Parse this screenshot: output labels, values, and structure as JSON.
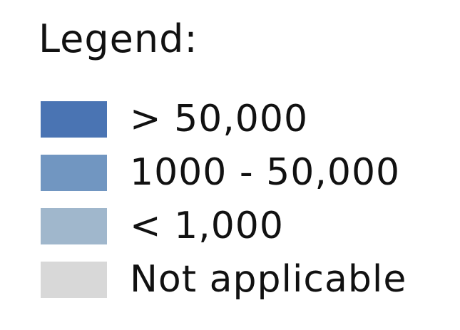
{
  "legend": {
    "title": "Legend:",
    "items": [
      {
        "label": "> 50,000",
        "color": "#4a74b3"
      },
      {
        "label": "1000 - 50,000",
        "color": "#7196c1"
      },
      {
        "label": "< 1,000",
        "color": "#a0b7cc"
      },
      {
        "label": "Not applicable",
        "color": "#d8d8d8"
      }
    ]
  }
}
